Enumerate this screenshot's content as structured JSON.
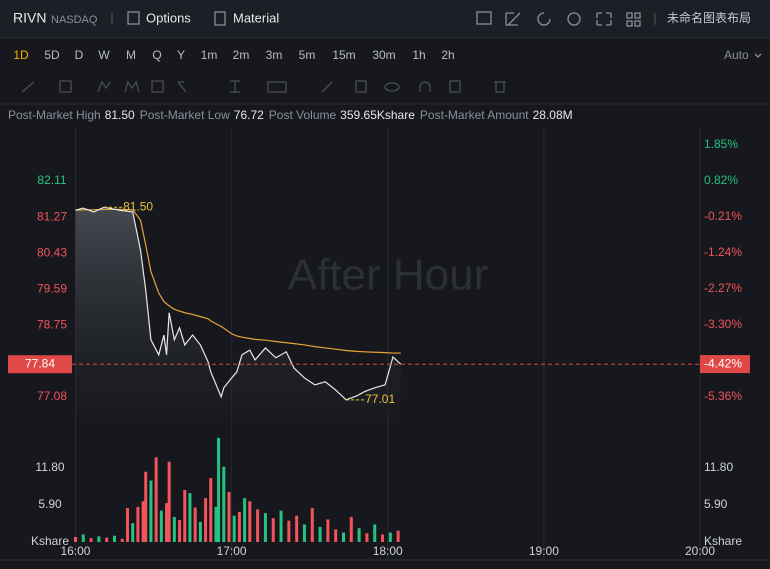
{
  "toolbar": {
    "symbol": "RIVN",
    "exchange": "NASDAQ",
    "options": "Options",
    "material": "Material",
    "layout_name": "未命名图表布局"
  },
  "periods": [
    "1D",
    "5D",
    "D",
    "W",
    "M",
    "Q",
    "Y",
    "1m",
    "2m",
    "3m",
    "5m",
    "15m",
    "30m",
    "1h",
    "2h"
  ],
  "scale_mode": "Auto",
  "stats": [
    {
      "label": "Post-Market High",
      "value": "81.50"
    },
    {
      "label": "Post-Market Low",
      "value": "76.72"
    },
    {
      "label": "Post Volume",
      "value": "359.65Kshare"
    },
    {
      "label": "Post-Market Amount",
      "value": "28.08M"
    }
  ],
  "chart_data": [
    {
      "type": "line",
      "watermark": "After Hour",
      "x": [
        0,
        3,
        7,
        11,
        17,
        22,
        25,
        27,
        29,
        32,
        34,
        35,
        36,
        38,
        40,
        42,
        45,
        48,
        51,
        52,
        56,
        57,
        60,
        62,
        64,
        67,
        69,
        73,
        77,
        81,
        84,
        88,
        92,
        96,
        100,
        104,
        108,
        111,
        115,
        119,
        122,
        125
      ],
      "xlim": [
        -29,
        240
      ],
      "series": [
        {
          "color": "#e8e8e8",
          "values": [
            81.43,
            81.48,
            81.39,
            81.5,
            81.43,
            81.39,
            80.5,
            79.57,
            78.41,
            78.06,
            78.52,
            78.06,
            79.04,
            78.41,
            78.69,
            78.29,
            78.52,
            78.29,
            77.89,
            77.66,
            77.08,
            77.29,
            77.52,
            77.66,
            78.06,
            78.17,
            77.94,
            78.22,
            77.99,
            78.13,
            77.75,
            77.52,
            77.36,
            77.43,
            77.24,
            77.01,
            77.1,
            77.2,
            77.29,
            77.36,
            78.01,
            77.84
          ]
        },
        {
          "color": "#e8a33a",
          "values": [
            81.43,
            81.44,
            81.44,
            81.45,
            81.45,
            81.44,
            81.2,
            80.62,
            80.0,
            79.5,
            79.3,
            79.25,
            79.2,
            79.12,
            79.08,
            79.04,
            79.0,
            78.95,
            78.9,
            78.85,
            78.72,
            78.68,
            78.55,
            78.5,
            78.47,
            78.44,
            78.42,
            78.4,
            78.37,
            78.34,
            78.32,
            78.29,
            78.25,
            78.22,
            78.19,
            78.16,
            78.14,
            78.13,
            78.12,
            78.11,
            78.1,
            78.1
          ]
        }
      ],
      "ylim": [
        76.54,
        83.3
      ],
      "yticks": [
        82.11,
        81.27,
        80.43,
        79.59,
        78.75,
        77.08
      ],
      "y2lim": [
        -6.02,
        2.28
      ],
      "y2ticks": [
        {
          "value": 1.85,
          "label": "1.85%"
        },
        {
          "value": 0.82,
          "label": "0.82%"
        },
        {
          "value": -0.21,
          "label": "-0.21%"
        },
        {
          "value": -1.24,
          "label": "-1.24%"
        },
        {
          "value": -2.27,
          "label": "-2.27%"
        },
        {
          "value": -3.3,
          "label": "-3.30%"
        },
        {
          "value": -5.36,
          "label": "-5.36%"
        }
      ],
      "annotations": [
        {
          "x": 11,
          "value": 81.5,
          "label": "81.50"
        },
        {
          "x": 104,
          "value": 77.01,
          "label": "77.01"
        }
      ],
      "last_price": 77.84,
      "last_change": {
        "value": -4.42,
        "label": "-4.42%"
      },
      "grid": true
    },
    {
      "type": "bar",
      "x": [
        0,
        3,
        6,
        9,
        12,
        15,
        18,
        20,
        22,
        24,
        26,
        27,
        29,
        31,
        33,
        35,
        36,
        38,
        40,
        42,
        44,
        46,
        48,
        50,
        52,
        54,
        55,
        57,
        59,
        61,
        63,
        65,
        67,
        70,
        73,
        76,
        79,
        82,
        85,
        88,
        91,
        94,
        97,
        100,
        103,
        106,
        109,
        112,
        115,
        118,
        121,
        124
      ],
      "values": [
        0.8,
        1.2,
        0.6,
        0.9,
        0.7,
        1.0,
        0.5,
        5.4,
        3.0,
        5.6,
        6.5,
        11.2,
        9.8,
        13.5,
        5.0,
        6.2,
        12.8,
        4.0,
        3.5,
        8.3,
        7.8,
        5.5,
        3.2,
        7.0,
        10.2,
        5.6,
        16.6,
        12.0,
        8.0,
        4.2,
        4.8,
        7.0,
        6.5,
        5.2,
        4.6,
        3.8,
        5.0,
        3.4,
        4.2,
        2.8,
        5.4,
        2.4,
        3.6,
        2.0,
        1.5,
        4.0,
        2.2,
        1.4,
        2.8,
        1.2,
        1.5,
        1.8
      ],
      "bar_colors": [
        "#f2545b",
        "#26c281",
        "#f2545b",
        "#26c281",
        "#f2545b",
        "#26c281",
        "#f2545b",
        "#f2545b",
        "#26c281",
        "#f2545b",
        "#f2545b",
        "#f2545b",
        "#26c281",
        "#f2545b",
        "#26c281",
        "#f2545b",
        "#f2545b",
        "#26c281",
        "#f2545b",
        "#f2545b",
        "#26c281",
        "#f2545b",
        "#26c281",
        "#f2545b",
        "#f2545b",
        "#26c281",
        "#26c281",
        "#26c281",
        "#f2545b",
        "#26c281",
        "#f2545b",
        "#26c281",
        "#f2545b",
        "#f2545b",
        "#26c281",
        "#f2545b",
        "#26c281",
        "#f2545b",
        "#f2545b",
        "#26c281",
        "#f2545b",
        "#26c281",
        "#f2545b",
        "#f2545b",
        "#26c281",
        "#f2545b",
        "#26c281",
        "#f2545b",
        "#26c281",
        "#f2545b",
        "#26c281",
        "#f2545b"
      ],
      "xlim": [
        -29,
        240
      ],
      "xticks": [
        {
          "value": 0,
          "label": "16:00"
        },
        {
          "value": 60,
          "label": "17:00"
        },
        {
          "value": 120,
          "label": "18:00"
        },
        {
          "value": 180,
          "label": "19:00"
        },
        {
          "value": 240,
          "label": "20:00"
        }
      ],
      "ylim": [
        0,
        17.86
      ],
      "yticks": [
        {
          "value": 11.8,
          "label": "11.80"
        },
        {
          "value": 5.9,
          "label": "5.90"
        },
        {
          "value": 0,
          "label": "Kshare"
        }
      ],
      "grid": true
    }
  ]
}
